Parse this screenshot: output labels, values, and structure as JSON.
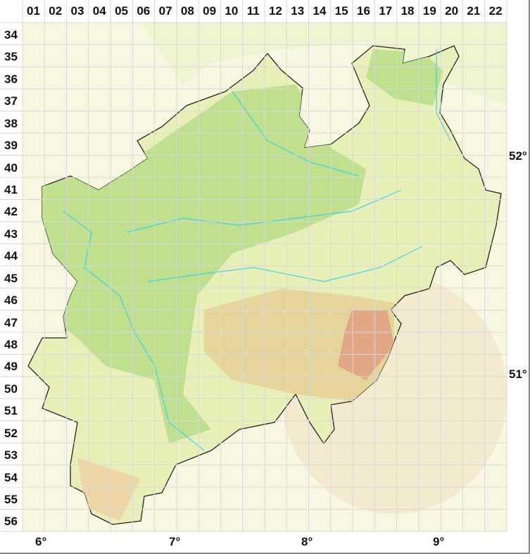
{
  "columns": [
    "01",
    "02",
    "03",
    "04",
    "05",
    "06",
    "07",
    "08",
    "09",
    "10",
    "11",
    "12",
    "13",
    "14",
    "15",
    "16",
    "17",
    "18",
    "19",
    "20",
    "21",
    "22"
  ],
  "rows": [
    "34",
    "35",
    "36",
    "37",
    "38",
    "39",
    "40",
    "41",
    "42",
    "43",
    "44",
    "45",
    "46",
    "47",
    "48",
    "49",
    "50",
    "51",
    "52",
    "53",
    "54",
    "55",
    "56"
  ],
  "longitude_labels": [
    "6°",
    "7°",
    "8°",
    "9°"
  ],
  "latitude_labels": [
    "52°",
    "51°"
  ],
  "colors": {
    "region": "#c8e6a0",
    "lowland": "#b5dc8a",
    "highland": "#e8d9a0",
    "peak": "#e09a80",
    "surrounding": "#f6f6dc",
    "rivers": "#3fd0e0",
    "grid": "#d8d8d8"
  }
}
